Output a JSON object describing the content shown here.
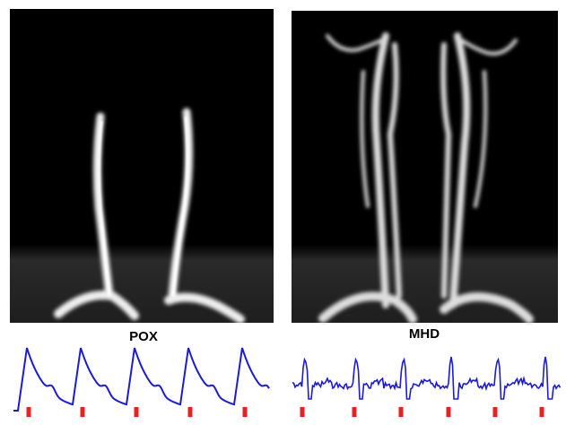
{
  "panels": [
    {
      "label": "POX"
    },
    {
      "label": "MHD"
    }
  ]
}
